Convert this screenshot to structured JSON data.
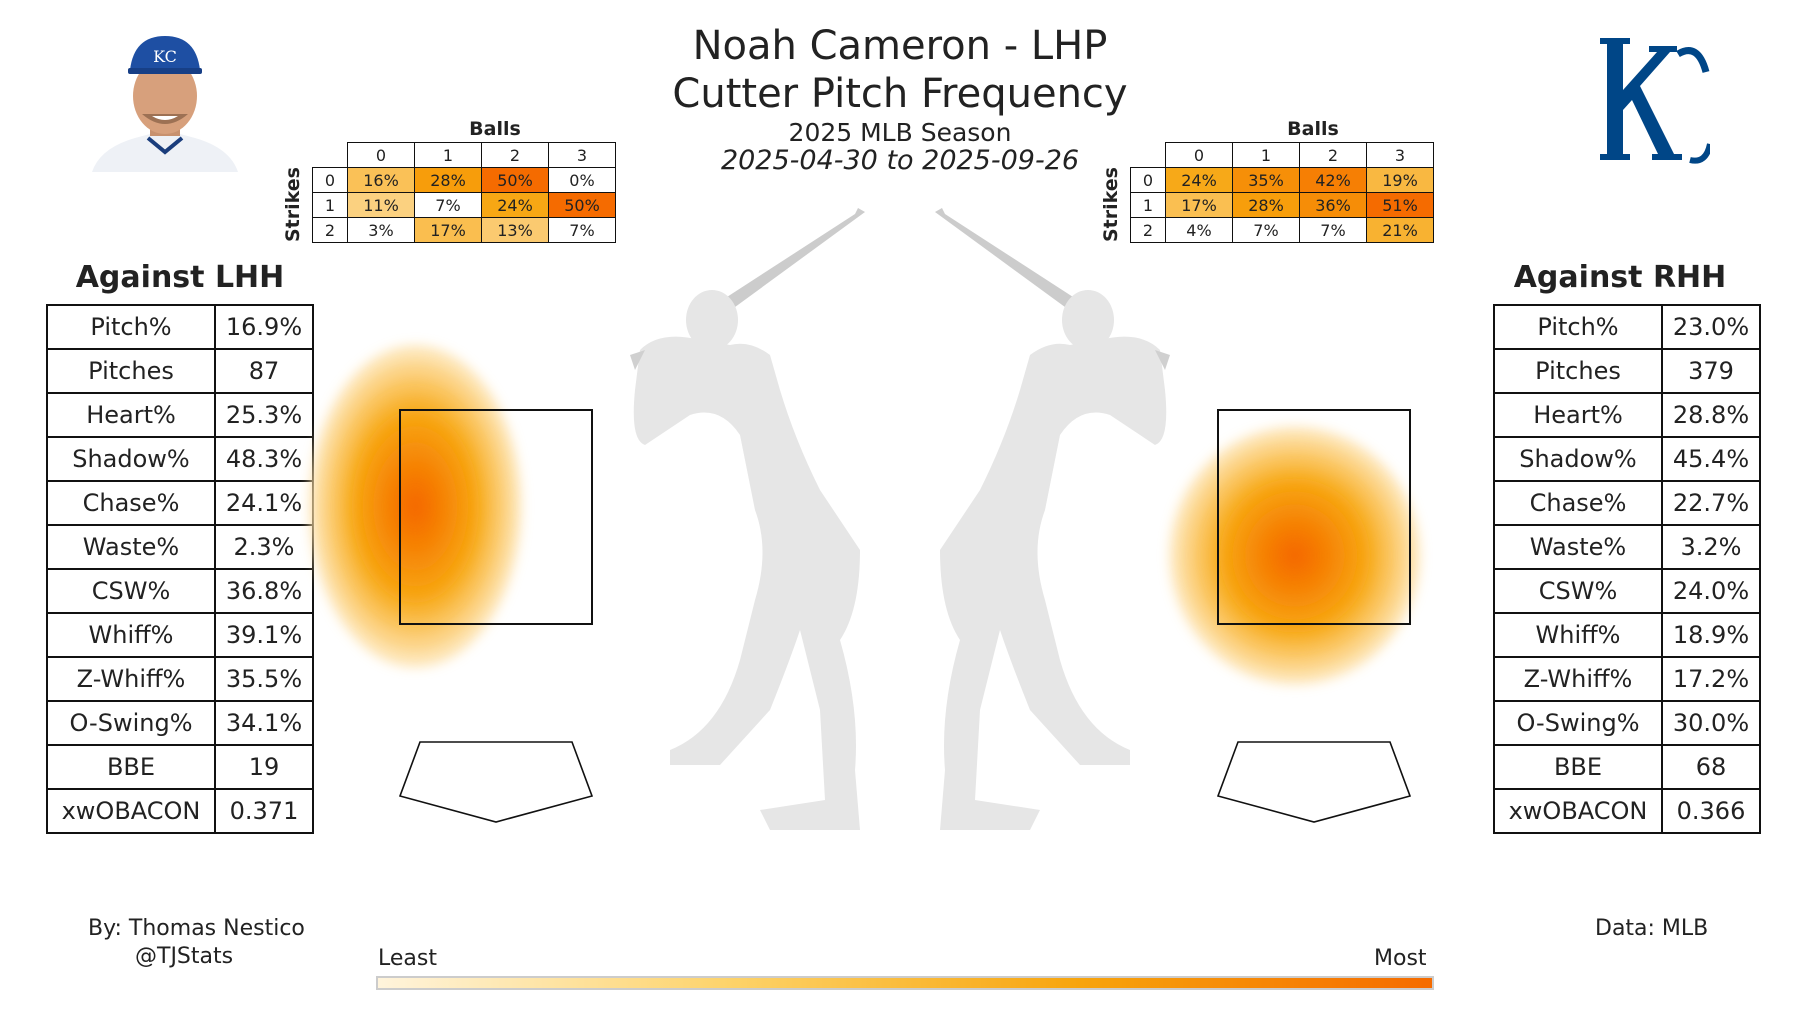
{
  "header": {
    "title": "Noah Cameron - LHP",
    "subtitle": "Cutter Pitch Frequency",
    "season": "2025 MLB Season",
    "date_range": "2025-04-30 to 2025-09-26"
  },
  "count_tables": {
    "balls_label": "Balls",
    "strikes_label": "Strikes",
    "ball_counts": [
      "0",
      "1",
      "2",
      "3"
    ],
    "strike_counts": [
      "0",
      "1",
      "2"
    ]
  },
  "colors": {
    "low": "#fff4dc",
    "mid": "#f7a40c",
    "high": "#f56b00",
    "team_blue": "#004687",
    "silhouette": "#e6e6e6"
  },
  "icons": {
    "headshot": "player-headshot",
    "logo": "kc-royals-logo",
    "batter": "batter-silhouette"
  },
  "chart_data": [
    {
      "type": "heatmap",
      "name_hint": "LHH count table",
      "rows": [
        "0",
        "1",
        "2"
      ],
      "cols": [
        "0",
        "1",
        "2",
        "3"
      ],
      "labels": [
        [
          "16%",
          "28%",
          "50%",
          "0%"
        ],
        [
          "11%",
          "7%",
          "24%",
          "50%"
        ],
        [
          "3%",
          "17%",
          "13%",
          "7%"
        ]
      ],
      "values": [
        [
          16,
          28,
          50,
          0
        ],
        [
          11,
          7,
          24,
          50
        ],
        [
          3,
          17,
          13,
          7
        ]
      ]
    },
    {
      "type": "heatmap",
      "name_hint": "RHH count table",
      "rows": [
        "0",
        "1",
        "2"
      ],
      "cols": [
        "0",
        "1",
        "2",
        "3"
      ],
      "labels": [
        [
          "24%",
          "35%",
          "42%",
          "19%"
        ],
        [
          "17%",
          "28%",
          "36%",
          "51%"
        ],
        [
          "4%",
          "7%",
          "7%",
          "21%"
        ]
      ],
      "values": [
        [
          24,
          35,
          42,
          19
        ],
        [
          17,
          28,
          36,
          51
        ],
        [
          4,
          7,
          7,
          21
        ]
      ]
    },
    {
      "type": "heatmap",
      "name_hint": "LHH location density",
      "center_offset_from_zone_center": [
        -0.42,
        -0.05
      ],
      "spread": [
        0.55,
        0.75
      ]
    },
    {
      "type": "heatmap",
      "name_hint": "RHH location density",
      "center_offset_from_zone_center": [
        -0.1,
        0.18
      ],
      "spread": [
        0.65,
        0.6
      ]
    }
  ],
  "lhh": {
    "title": "Against LHH",
    "stats": [
      {
        "label": "Pitch%",
        "value": "16.9%"
      },
      {
        "label": "Pitches",
        "value": "87"
      },
      {
        "label": "Heart%",
        "value": "25.3%"
      },
      {
        "label": "Shadow%",
        "value": "48.3%"
      },
      {
        "label": "Chase%",
        "value": "24.1%"
      },
      {
        "label": "Waste%",
        "value": "2.3%"
      },
      {
        "label": "CSW%",
        "value": "36.8%"
      },
      {
        "label": "Whiff%",
        "value": "39.1%"
      },
      {
        "label": "Z-Whiff%",
        "value": "35.5%"
      },
      {
        "label": "O-Swing%",
        "value": "34.1%"
      },
      {
        "label": "BBE",
        "value": "19"
      },
      {
        "label": "xwOBACON",
        "value": "0.371"
      }
    ]
  },
  "rhh": {
    "title": "Against RHH",
    "stats": [
      {
        "label": "Pitch%",
        "value": "23.0%"
      },
      {
        "label": "Pitches",
        "value": "379"
      },
      {
        "label": "Heart%",
        "value": "28.8%"
      },
      {
        "label": "Shadow%",
        "value": "45.4%"
      },
      {
        "label": "Chase%",
        "value": "22.7%"
      },
      {
        "label": "Waste%",
        "value": "3.2%"
      },
      {
        "label": "CSW%",
        "value": "24.0%"
      },
      {
        "label": "Whiff%",
        "value": "18.9%"
      },
      {
        "label": "Z-Whiff%",
        "value": "17.2%"
      },
      {
        "label": "O-Swing%",
        "value": "30.0%"
      },
      {
        "label": "BBE",
        "value": "68"
      },
      {
        "label": "xwOBACON",
        "value": "0.366"
      }
    ]
  },
  "footer": {
    "by_line": "By: Thomas Nestico",
    "handle": "@TJStats",
    "source": "Data: MLB",
    "legend_low": "Least",
    "legend_high": "Most"
  }
}
